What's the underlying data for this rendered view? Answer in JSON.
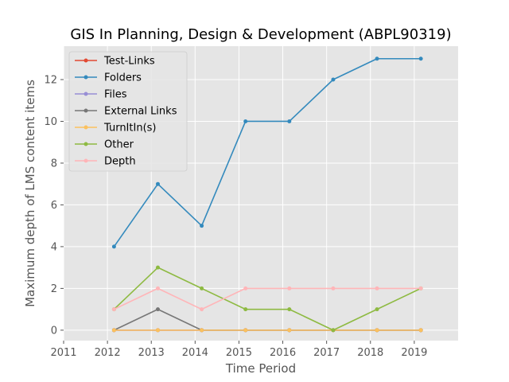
{
  "chart_data": {
    "type": "line",
    "title": "GIS In Planning, Design & Development (ABPL90319)",
    "xlabel": "Time Period",
    "ylabel": "Maximum depth of LMS content items",
    "xlim": [
      2011,
      2020
    ],
    "ylim": [
      -0.5,
      13.6
    ],
    "xticks": [
      2011,
      2012,
      2013,
      2014,
      2015,
      2016,
      2017,
      2018,
      2019
    ],
    "yticks": [
      0,
      2,
      4,
      6,
      8,
      10,
      12
    ],
    "grid": true,
    "legend_position": "top-left",
    "x": [
      2012.15,
      2013.15,
      2014.15,
      2015.15,
      2016.15,
      2017.15,
      2018.15,
      2019.15
    ],
    "series": [
      {
        "name": "Test-Links",
        "color": "#e24a33",
        "values": [
          0,
          0,
          0,
          0,
          0,
          0,
          0,
          0
        ]
      },
      {
        "name": "Folders",
        "color": "#348abd",
        "values": [
          4,
          7,
          5,
          10,
          10,
          12,
          13,
          13
        ]
      },
      {
        "name": "Files",
        "color": "#988ed5",
        "values": [
          0,
          0,
          0,
          0,
          0,
          0,
          0,
          0
        ]
      },
      {
        "name": "External Links",
        "color": "#777777",
        "values": [
          0,
          1,
          0,
          0,
          0,
          0,
          0,
          0
        ]
      },
      {
        "name": "TurnItIn(s)",
        "color": "#fbc15e",
        "values": [
          0,
          0,
          0,
          0,
          0,
          0,
          0,
          0
        ]
      },
      {
        "name": "Other",
        "color": "#8eba42",
        "values": [
          1,
          3,
          2,
          1,
          1,
          0,
          1,
          2
        ]
      },
      {
        "name": "Depth",
        "color": "#ffb5b8",
        "values": [
          1,
          2,
          1,
          2,
          2,
          2,
          2,
          2
        ]
      }
    ]
  }
}
